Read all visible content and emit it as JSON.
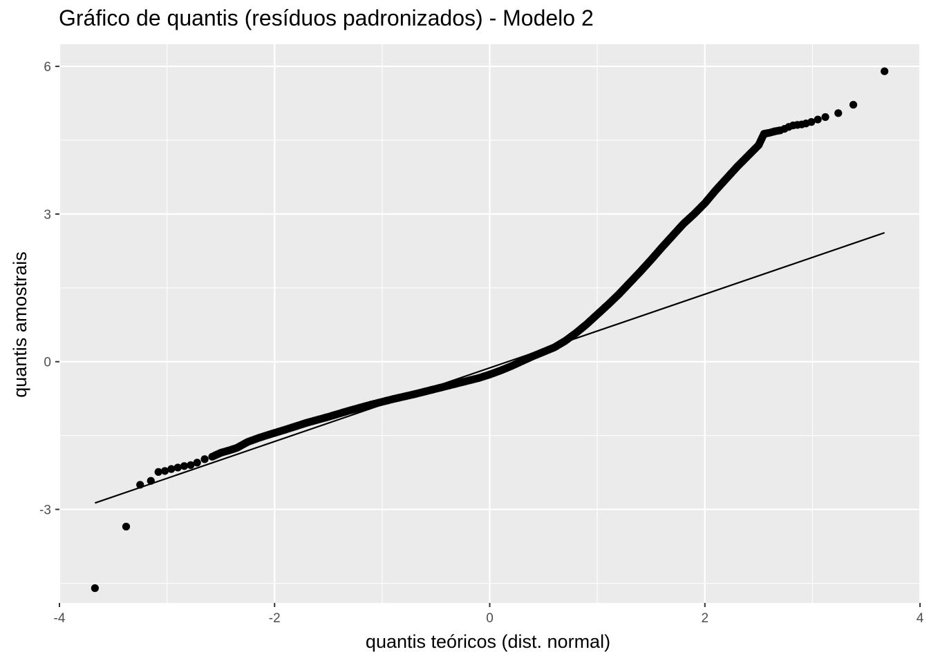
{
  "chart_data": {
    "type": "scatter",
    "title": "Gráfico de quantis (resíduos padronizados) - Modelo 2",
    "xlabel": "quantis teóricos (dist. normal)",
    "ylabel": "quantis amostrais",
    "xlim": [
      -4,
      4
    ],
    "ylim": [
      -4.9,
      6.45
    ],
    "x_ticks": [
      -4,
      -2,
      0,
      2,
      4
    ],
    "x_tick_labels": [
      "-4",
      "-2",
      "0",
      "2",
      "4"
    ],
    "y_ticks": [
      -3,
      0,
      3,
      6
    ],
    "y_tick_labels": [
      "-3",
      "0",
      "3",
      "6"
    ],
    "grid": true,
    "panel_background": "#ebebeb",
    "grid_color": "#ffffff",
    "point_color": "#000000",
    "reference_line": {
      "x": [
        -3.67,
        3.67
      ],
      "y": [
        -2.87,
        2.62
      ]
    },
    "points": {
      "x": [
        -3.67,
        -3.38,
        -3.25,
        -3.15,
        -3.08,
        -3.02,
        -2.96,
        -2.9,
        -2.84,
        -2.78,
        -2.72,
        -2.65,
        -2.58,
        -2.5,
        -2.42,
        -2.35,
        -2.25,
        -2.15,
        -2.05,
        -1.9,
        -1.7,
        -1.5,
        -1.3,
        -1.1,
        -0.9,
        -0.7,
        -0.5,
        -0.3,
        -0.1,
        0.0,
        0.1,
        0.2,
        0.3,
        0.4,
        0.5,
        0.6,
        0.7,
        0.8,
        0.9,
        1.0,
        1.1,
        1.2,
        1.3,
        1.4,
        1.5,
        1.6,
        1.7,
        1.8,
        1.9,
        2.0,
        2.1,
        2.2,
        2.3,
        2.4,
        2.5,
        2.55,
        2.6,
        2.65,
        2.7,
        2.74,
        2.78,
        2.82,
        2.86,
        2.9,
        2.94,
        2.99,
        3.05,
        3.12,
        3.24,
        3.38,
        3.67
      ],
      "y": [
        -4.6,
        -3.35,
        -2.5,
        -2.42,
        -2.24,
        -2.22,
        -2.18,
        -2.15,
        -2.12,
        -2.1,
        -2.05,
        -1.98,
        -1.93,
        -1.85,
        -1.8,
        -1.75,
        -1.63,
        -1.55,
        -1.48,
        -1.38,
        -1.24,
        -1.12,
        -0.99,
        -0.87,
        -0.76,
        -0.66,
        -0.55,
        -0.44,
        -0.33,
        -0.26,
        -0.18,
        -0.09,
        0.01,
        0.11,
        0.2,
        0.29,
        0.42,
        0.58,
        0.76,
        0.96,
        1.16,
        1.37,
        1.6,
        1.83,
        2.07,
        2.32,
        2.56,
        2.8,
        3.0,
        3.22,
        3.48,
        3.72,
        3.96,
        4.18,
        4.4,
        4.63,
        4.65,
        4.68,
        4.7,
        4.73,
        4.77,
        4.8,
        4.81,
        4.82,
        4.84,
        4.87,
        4.92,
        4.97,
        5.05,
        5.22,
        5.9
      ]
    }
  }
}
